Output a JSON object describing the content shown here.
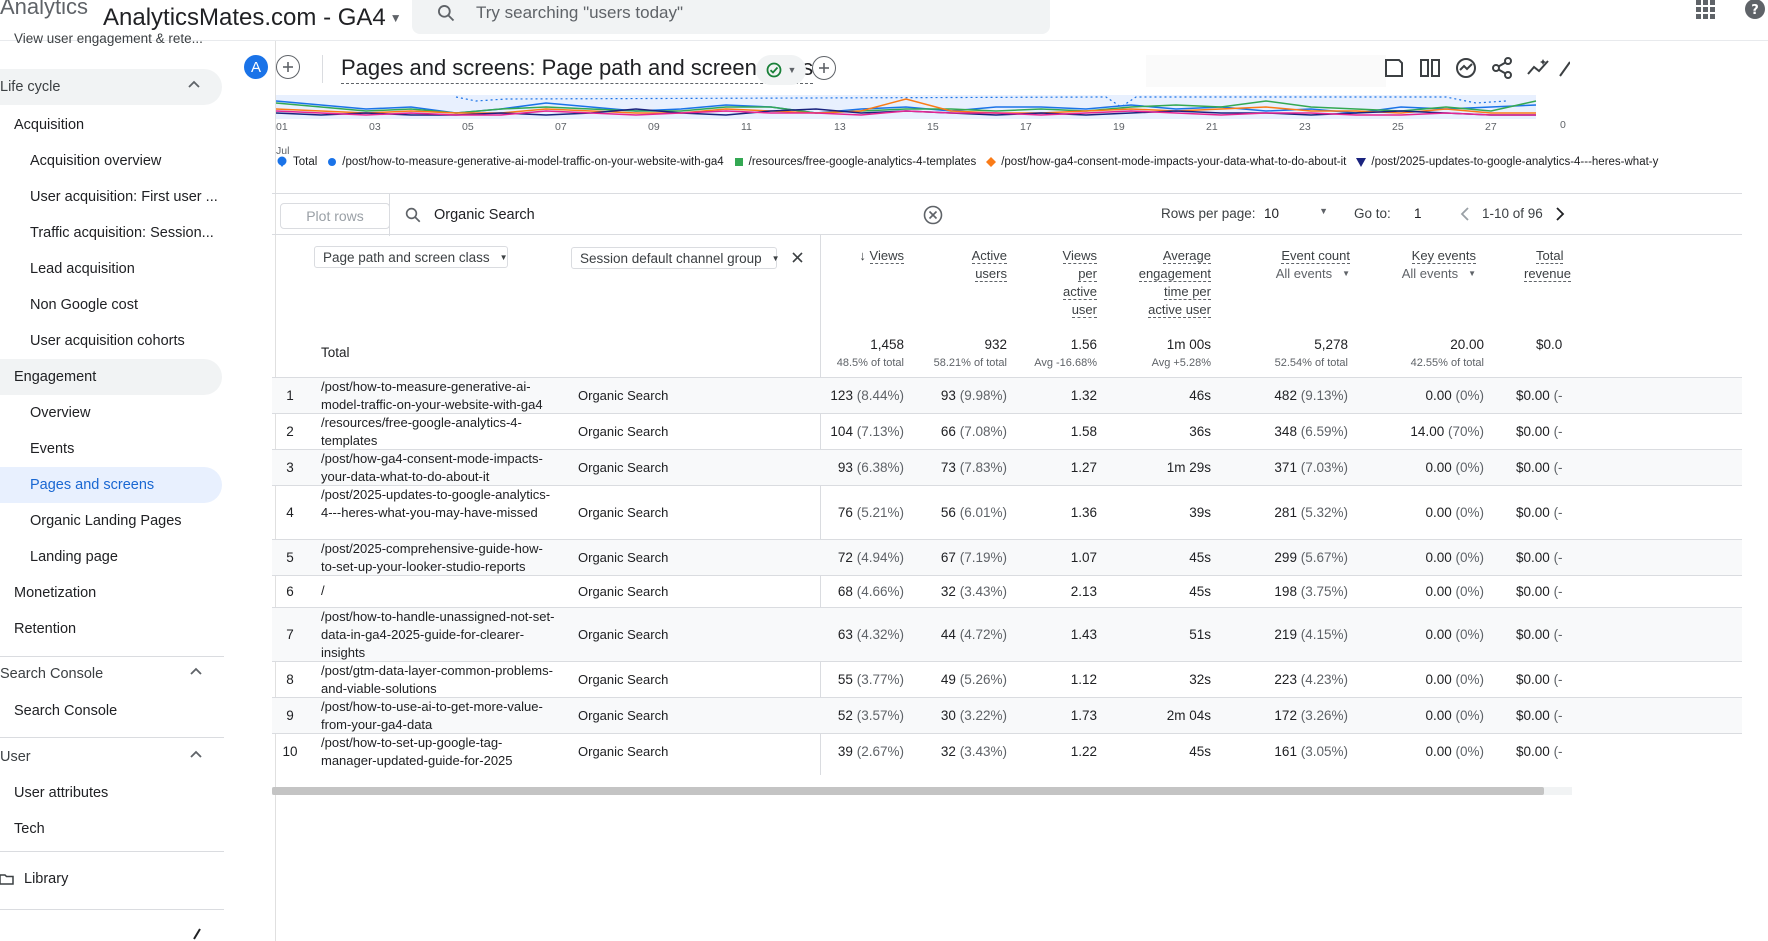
{
  "topbar": {
    "brand": "Analytics",
    "property": "AnalyticsMates.com - GA4",
    "search_placeholder": "Try searching \"users today\""
  },
  "sidebar": {
    "truncated_top": "View user engagement & rete...",
    "sections": [
      {
        "label": "Life cycle"
      },
      {
        "label": "Search Console"
      },
      {
        "label": "User"
      }
    ],
    "items": [
      {
        "label": "Acquisition"
      },
      {
        "label": "Acquisition overview"
      },
      {
        "label": "User acquisition: First user ..."
      },
      {
        "label": "Traffic acquisition: Session..."
      },
      {
        "label": "Lead acquisition"
      },
      {
        "label": "Non Google cost"
      },
      {
        "label": "User acquisition cohorts"
      },
      {
        "label": "Engagement"
      },
      {
        "label": "Overview"
      },
      {
        "label": "Events"
      },
      {
        "label": "Pages and screens"
      },
      {
        "label": "Organic Landing Pages"
      },
      {
        "label": "Landing page"
      },
      {
        "label": "Monetization"
      },
      {
        "label": "Retention"
      },
      {
        "label": "Search Console"
      },
      {
        "label": "User attributes"
      },
      {
        "label": "Tech"
      },
      {
        "label": "Library"
      }
    ]
  },
  "report": {
    "avatar": "A",
    "title": "Pages and screens: Page path and screen class"
  },
  "chart": {
    "x_ticks": [
      "01",
      "03",
      "05",
      "07",
      "09",
      "11",
      "13",
      "15",
      "17",
      "19",
      "21",
      "23",
      "25",
      "27"
    ],
    "x_month": "Jul",
    "right_tick": "0",
    "legend": [
      {
        "label": "Total",
        "color": "#1a73e8",
        "marker": "pin"
      },
      {
        "label": "/post/how-to-measure-generative-ai-model-traffic-on-your-website-with-ga4",
        "color": "#1a73e8",
        "marker": "circle"
      },
      {
        "label": "/resources/free-google-analytics-4-templates",
        "color": "#34a853",
        "marker": "square"
      },
      {
        "label": "/post/how-ga4-consent-mode-impacts-your-data-what-to-do-about-it",
        "color": "#fa7b17",
        "marker": "diamond"
      },
      {
        "label": "/post/2025-updates-to-google-analytics-4---heres-what-y",
        "color": "#1a237e",
        "marker": "triangle"
      }
    ]
  },
  "table": {
    "plot_rows": "Plot rows",
    "filter_value": "Organic Search",
    "rows_per_page_label": "Rows per page:",
    "rows_per_page": "10",
    "goto_label": "Go to:",
    "goto_value": "1",
    "range": "1-10 of 96",
    "dim1": "Page path and screen class",
    "dim2": "Session default channel group",
    "headers": {
      "views": "Views",
      "active_users_1": "Active",
      "active_users_2": "users",
      "vpu_1": "Views",
      "vpu_2": "per",
      "vpu_3": "active",
      "vpu_4": "user",
      "aet_1": "Average",
      "aet_2": "engagement",
      "aet_3": "time per",
      "aet_4": "active user",
      "events": "Event count",
      "events_sub": "All events",
      "keyevents": "Key events",
      "keyevents_sub": "All events",
      "revenue_1": "Total",
      "revenue_2": "revenue"
    },
    "total": {
      "label": "Total",
      "views": "1,458",
      "views_sub": "48.5% of total",
      "users": "932",
      "users_sub": "58.21% of total",
      "vpu": "1.56",
      "vpu_sub": "Avg -16.68%",
      "aet": "1m 00s",
      "aet_sub": "Avg +5.28%",
      "events": "5,278",
      "events_sub": "52.54% of total",
      "keyevents": "20.00",
      "keyevents_sub": "42.55% of total",
      "revenue": "$0.0"
    },
    "rows": [
      {
        "idx": "1",
        "path": "/post/how-to-measure-generative-ai-model-traffic-on-your-website-with-ga4",
        "chan": "Organic Search",
        "views": "123",
        "views_p": "(8.44%)",
        "users": "93",
        "users_p": "(9.98%)",
        "vpu": "1.32",
        "aet": "46s",
        "events": "482",
        "events_p": "(9.13%)",
        "ke": "0.00",
        "ke_p": "(0%)",
        "rev": "$0.00",
        "rev_p": "(-"
      },
      {
        "idx": "2",
        "path": "/resources/free-google-analytics-4-templates",
        "chan": "Organic Search",
        "views": "104",
        "views_p": "(7.13%)",
        "users": "66",
        "users_p": "(7.08%)",
        "vpu": "1.58",
        "aet": "36s",
        "events": "348",
        "events_p": "(6.59%)",
        "ke": "14.00",
        "ke_p": "(70%)",
        "rev": "$0.00",
        "rev_p": "(-"
      },
      {
        "idx": "3",
        "path": "/post/how-ga4-consent-mode-impacts-your-data-what-to-do-about-it",
        "chan": "Organic Search",
        "views": "93",
        "views_p": "(6.38%)",
        "users": "73",
        "users_p": "(7.83%)",
        "vpu": "1.27",
        "aet": "1m 29s",
        "events": "371",
        "events_p": "(7.03%)",
        "ke": "0.00",
        "ke_p": "(0%)",
        "rev": "$0.00",
        "rev_p": "(-"
      },
      {
        "idx": "4",
        "path": "/post/2025-updates-to-google-analytics-4---heres-what-you-may-have-missed",
        "chan": "Organic Search",
        "views": "76",
        "views_p": "(5.21%)",
        "users": "56",
        "users_p": "(6.01%)",
        "vpu": "1.36",
        "aet": "39s",
        "events": "281",
        "events_p": "(5.32%)",
        "ke": "0.00",
        "ke_p": "(0%)",
        "rev": "$0.00",
        "rev_p": "(-"
      },
      {
        "idx": "5",
        "path": "/post/2025-comprehensive-guide-how-to-set-up-your-looker-studio-reports",
        "chan": "Organic Search",
        "views": "72",
        "views_p": "(4.94%)",
        "users": "67",
        "users_p": "(7.19%)",
        "vpu": "1.07",
        "aet": "45s",
        "events": "299",
        "events_p": "(5.67%)",
        "ke": "0.00",
        "ke_p": "(0%)",
        "rev": "$0.00",
        "rev_p": "(-"
      },
      {
        "idx": "6",
        "path": "/",
        "chan": "Organic Search",
        "views": "68",
        "views_p": "(4.66%)",
        "users": "32",
        "users_p": "(3.43%)",
        "vpu": "2.13",
        "aet": "45s",
        "events": "198",
        "events_p": "(3.75%)",
        "ke": "0.00",
        "ke_p": "(0%)",
        "rev": "$0.00",
        "rev_p": "(-"
      },
      {
        "idx": "7",
        "path": "/post/how-to-handle-unassigned-not-set-data-in-ga4-2025-guide-for-clearer-insights",
        "chan": "Organic Search",
        "views": "63",
        "views_p": "(4.32%)",
        "users": "44",
        "users_p": "(4.72%)",
        "vpu": "1.43",
        "aet": "51s",
        "events": "219",
        "events_p": "(4.15%)",
        "ke": "0.00",
        "ke_p": "(0%)",
        "rev": "$0.00",
        "rev_p": "(-"
      },
      {
        "idx": "8",
        "path": "/post/gtm-data-layer-common-problems-and-viable-solutions",
        "chan": "Organic Search",
        "views": "55",
        "views_p": "(3.77%)",
        "users": "49",
        "users_p": "(5.26%)",
        "vpu": "1.12",
        "aet": "32s",
        "events": "223",
        "events_p": "(4.23%)",
        "ke": "0.00",
        "ke_p": "(0%)",
        "rev": "$0.00",
        "rev_p": "(-"
      },
      {
        "idx": "9",
        "path": "/post/how-to-use-ai-to-get-more-value-from-your-ga4-data",
        "chan": "Organic Search",
        "views": "52",
        "views_p": "(3.57%)",
        "users": "30",
        "users_p": "(3.22%)",
        "vpu": "1.73",
        "aet": "2m 04s",
        "events": "172",
        "events_p": "(3.26%)",
        "ke": "0.00",
        "ke_p": "(0%)",
        "rev": "$0.00",
        "rev_p": "(-"
      },
      {
        "idx": "10",
        "path": "/post/how-to-set-up-google-tag-manager-updated-guide-for-2025",
        "chan": "Organic Search",
        "views": "39",
        "views_p": "(2.67%)",
        "users": "32",
        "users_p": "(3.43%)",
        "vpu": "1.22",
        "aet": "45s",
        "events": "161",
        "events_p": "(3.05%)",
        "ke": "0.00",
        "ke_p": "(0%)",
        "rev": "$0.00",
        "rev_p": "(-"
      }
    ]
  }
}
